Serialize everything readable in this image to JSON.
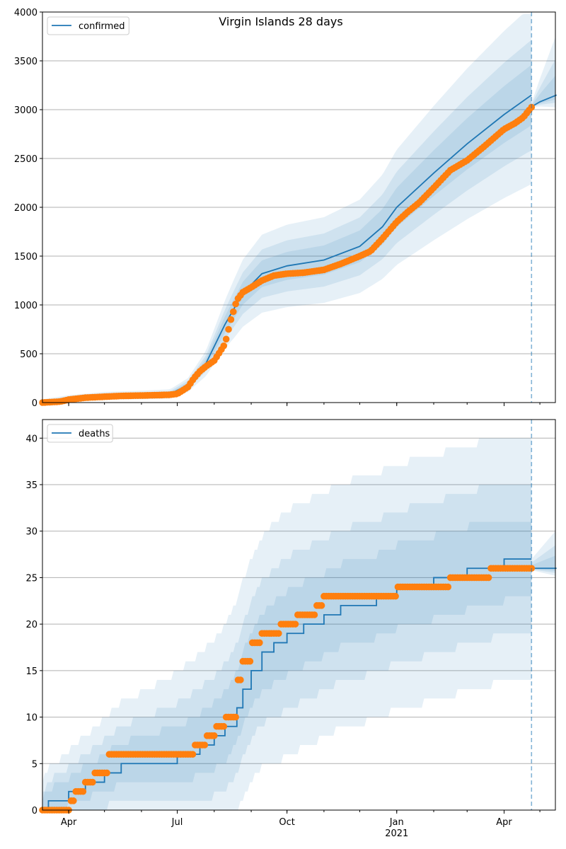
{
  "title": "Virgin Islands 28 days",
  "colors": {
    "forecast": "#1f77b4",
    "observed": "#ff7f0e",
    "band": "#1f77b4",
    "grid": "#b0b0b0",
    "cutoff": "#1f77b4"
  },
  "x_ticks": [
    {
      "day": 22,
      "label": "Apr"
    },
    {
      "day": 113,
      "label": "Jul"
    },
    {
      "day": 205,
      "label": "Oct"
    },
    {
      "day": 297,
      "label": "Jan",
      "sublabel": "2021"
    },
    {
      "day": 387,
      "label": "Apr"
    }
  ],
  "chart_data": [
    {
      "type": "line",
      "legend": "confirmed",
      "legend_position": "top-left",
      "xlim": [
        "2020-03-10",
        "2021-05-15"
      ],
      "ylim": [
        0,
        4000
      ],
      "yticks": [
        0,
        500,
        1000,
        1500,
        2000,
        2500,
        3000,
        3500,
        4000
      ],
      "grid": "y",
      "cutoff_date": "2021-04-24",
      "observed": {
        "dates": [
          "2020-03-10",
          "2020-03-25",
          "2020-04-01",
          "2020-04-15",
          "2020-05-01",
          "2020-05-15",
          "2020-06-01",
          "2020-06-20",
          "2020-06-25",
          "2020-07-01",
          "2020-07-05",
          "2020-07-10",
          "2020-07-15",
          "2020-07-20",
          "2020-07-25",
          "2020-08-01",
          "2020-08-10",
          "2020-08-15",
          "2020-08-20",
          "2020-08-25",
          "2020-09-01",
          "2020-09-10",
          "2020-09-20",
          "2020-10-01",
          "2020-10-15",
          "2020-11-01",
          "2020-11-15",
          "2020-12-01",
          "2020-12-10",
          "2020-12-20",
          "2021-01-01",
          "2021-01-10",
          "2021-01-20",
          "2021-02-01",
          "2021-02-15",
          "2021-03-01",
          "2021-03-15",
          "2021-04-01",
          "2021-04-10",
          "2021-04-17",
          "2021-04-24"
        ],
        "values": [
          0,
          10,
          30,
          50,
          60,
          68,
          72,
          78,
          80,
          90,
          120,
          160,
          250,
          320,
          370,
          430,
          600,
          850,
          1050,
          1130,
          1180,
          1250,
          1300,
          1320,
          1330,
          1360,
          1420,
          1500,
          1550,
          1680,
          1850,
          1950,
          2050,
          2200,
          2380,
          2480,
          2620,
          2800,
          2860,
          2920,
          3025
        ]
      },
      "forecast": {
        "dates": [
          "2020-03-10",
          "2020-04-01",
          "2020-05-01",
          "2020-06-01",
          "2020-06-25",
          "2020-07-10",
          "2020-07-25",
          "2020-08-10",
          "2020-08-25",
          "2020-09-10",
          "2020-10-01",
          "2020-11-01",
          "2020-12-01",
          "2020-12-20",
          "2021-01-01",
          "2021-02-01",
          "2021-03-01",
          "2021-04-01",
          "2021-04-24"
        ],
        "values": [
          0,
          40,
          70,
          78,
          88,
          180,
          400,
          800,
          1120,
          1320,
          1400,
          1460,
          1600,
          1800,
          2000,
          2350,
          2650,
          2950,
          3150
        ]
      },
      "forecast_ahead": {
        "dates": [
          "2021-04-24",
          "2021-05-01",
          "2021-05-15"
        ],
        "values": [
          3030,
          3080,
          3150
        ]
      }
    },
    {
      "type": "line",
      "legend": "deaths",
      "legend_position": "top-left",
      "xlim": [
        "2020-03-10",
        "2021-05-15"
      ],
      "ylim": [
        0,
        42
      ],
      "yticks": [
        0,
        5,
        10,
        15,
        20,
        25,
        30,
        35,
        40
      ],
      "grid": "y",
      "cutoff_date": "2021-04-24",
      "observed": {
        "dates": [
          "2020-03-10",
          "2020-04-03",
          "2020-04-06",
          "2020-04-15",
          "2020-04-22",
          "2020-05-05",
          "2020-07-15",
          "2020-07-25",
          "2020-08-03",
          "2020-08-10",
          "2020-08-20",
          "2020-08-25",
          "2020-09-01",
          "2020-09-10",
          "2020-09-25",
          "2020-10-10",
          "2020-10-25",
          "2020-11-01",
          "2021-01-01",
          "2021-02-15",
          "2021-03-20",
          "2021-04-24"
        ],
        "values": [
          0,
          1,
          2,
          3,
          4,
          6,
          7,
          8,
          9,
          10,
          14,
          16,
          18,
          19,
          20,
          21,
          22,
          23,
          24,
          25,
          26,
          26
        ]
      },
      "forecast": {
        "dates": [
          "2020-03-10",
          "2020-03-15",
          "2020-04-01",
          "2020-04-15",
          "2020-05-01",
          "2020-05-15",
          "2020-07-01",
          "2020-07-20",
          "2020-08-01",
          "2020-08-10",
          "2020-08-20",
          "2020-08-25",
          "2020-09-01",
          "2020-09-10",
          "2020-09-20",
          "2020-10-01",
          "2020-10-15",
          "2020-11-01",
          "2020-11-15",
          "2020-12-15",
          "2021-01-01",
          "2021-02-01",
          "2021-03-01",
          "2021-04-01",
          "2021-04-24"
        ],
        "values": [
          0,
          1,
          2,
          3,
          4,
          5,
          6,
          7,
          8,
          9,
          11,
          13,
          15,
          17,
          18,
          19,
          20,
          21,
          22,
          23,
          24,
          25,
          26,
          27,
          27
        ]
      },
      "forecast_ahead": {
        "dates": [
          "2021-04-24",
          "2021-05-15"
        ],
        "values": [
          26,
          26
        ]
      }
    }
  ]
}
